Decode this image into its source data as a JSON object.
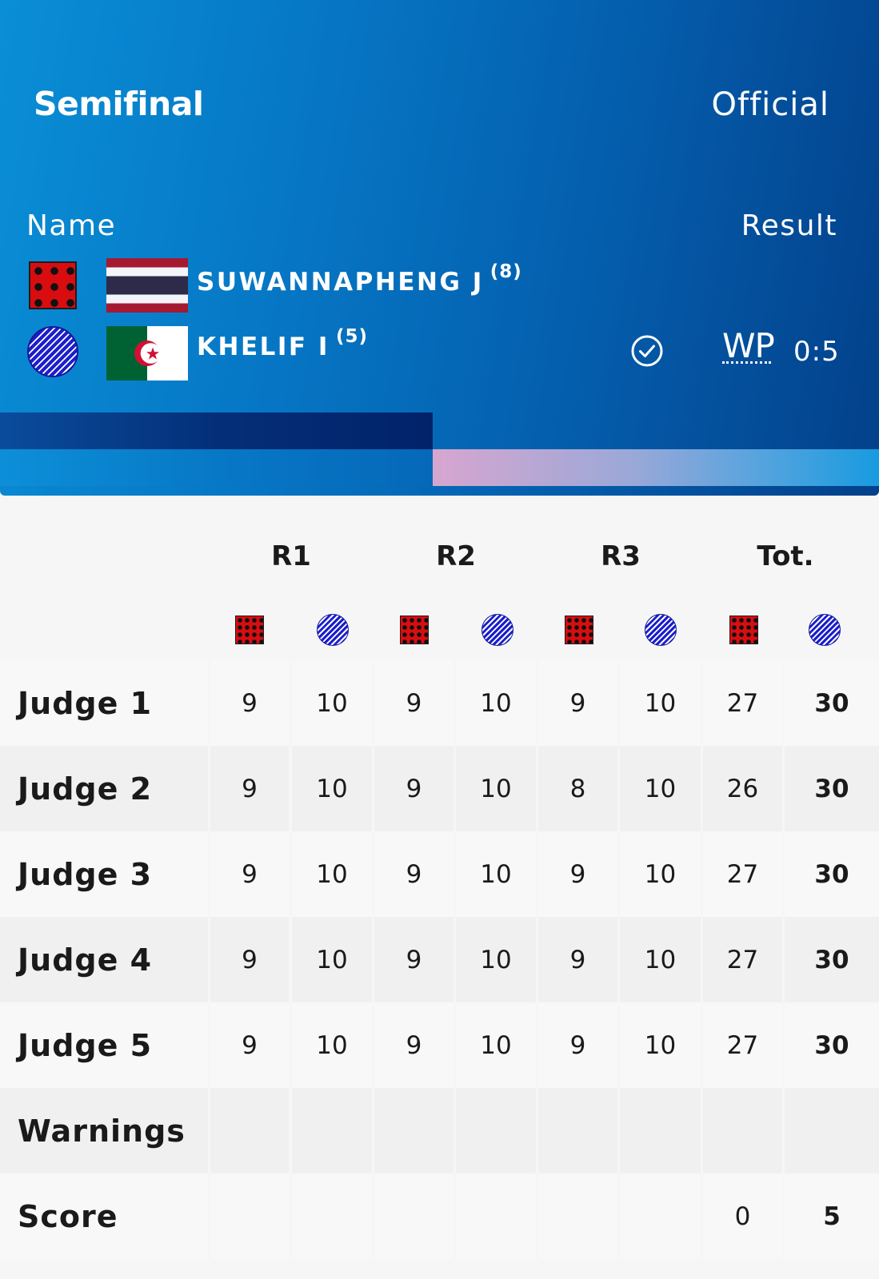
{
  "header": {
    "stage": "Semifinal",
    "status": "Official",
    "col_name": "Name",
    "col_result": "Result"
  },
  "athletes": {
    "red": {
      "corner": "red",
      "name": "SUWANNAPHENG J",
      "seed": "(8)",
      "flag": "Thailand"
    },
    "blue": {
      "corner": "blue",
      "name": "KHELIF I",
      "seed": "(5)",
      "flag": "Algeria",
      "winner_icon": "check-circle-icon",
      "result_code": "WP",
      "result_score": "0:5"
    }
  },
  "colors": {
    "red_corner": "#d90d10",
    "blue_corner": "#1b1fcc",
    "header_blue": "#0676c4",
    "header_dark": "#03408a"
  },
  "table": {
    "rounds": [
      "R1",
      "R2",
      "R3",
      "Tot."
    ],
    "rows": [
      {
        "label": "Judge 1",
        "values": [
          "9",
          "10",
          "9",
          "10",
          "9",
          "10",
          "27",
          "30"
        ]
      },
      {
        "label": "Judge 2",
        "values": [
          "9",
          "10",
          "9",
          "10",
          "8",
          "10",
          "26",
          "30"
        ]
      },
      {
        "label": "Judge 3",
        "values": [
          "9",
          "10",
          "9",
          "10",
          "9",
          "10",
          "27",
          "30"
        ]
      },
      {
        "label": "Judge 4",
        "values": [
          "9",
          "10",
          "9",
          "10",
          "9",
          "10",
          "27",
          "30"
        ]
      },
      {
        "label": "Judge 5",
        "values": [
          "9",
          "10",
          "9",
          "10",
          "9",
          "10",
          "27",
          "30"
        ]
      },
      {
        "label": "Warnings",
        "values": [
          "",
          "",
          "",
          "",
          "",
          "",
          "",
          ""
        ]
      },
      {
        "label": "Score",
        "values": [
          "",
          "",
          "",
          "",
          "",
          "",
          "0",
          "5"
        ]
      }
    ]
  }
}
